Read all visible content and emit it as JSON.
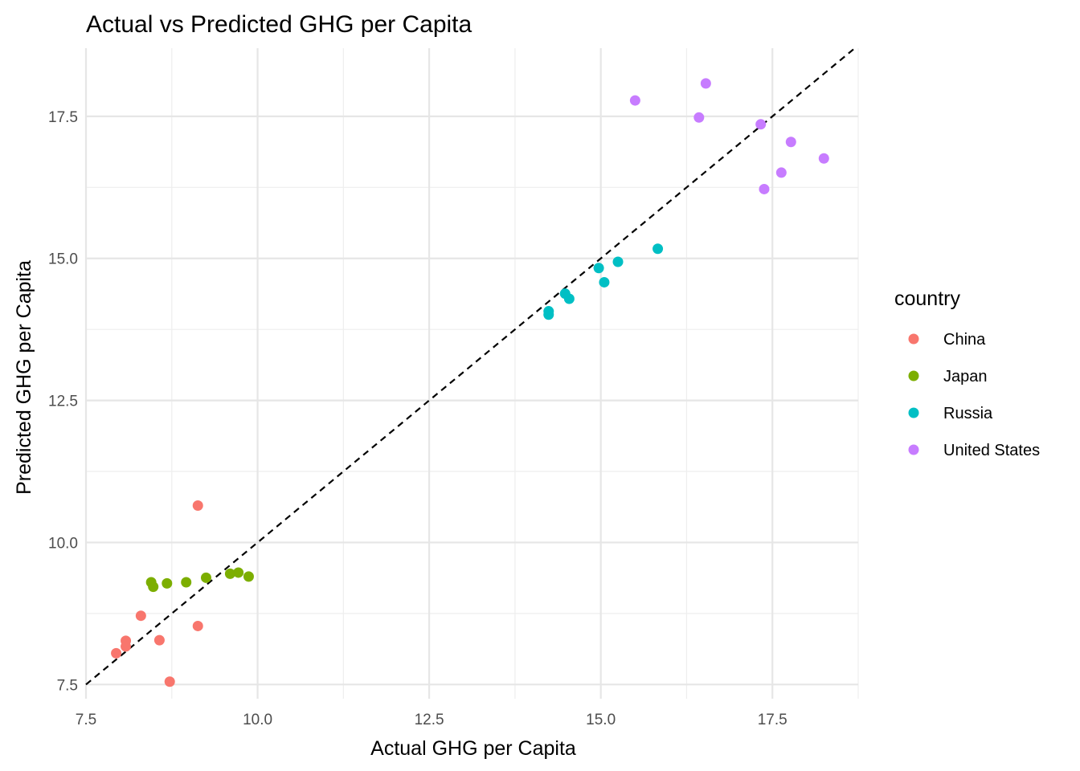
{
  "chart_data": {
    "type": "scatter",
    "title": "Actual vs Predicted GHG per Capita",
    "xlabel": "Actual GHG per Capita",
    "ylabel": "Predicted GHG per Capita",
    "xlim": [
      7.5,
      18.75
    ],
    "ylim": [
      7.25,
      18.7
    ],
    "x_ticks": [
      7.5,
      10.0,
      12.5,
      15.0,
      17.5
    ],
    "y_ticks": [
      7.5,
      10.0,
      12.5,
      15.0,
      17.5
    ],
    "x_tick_labels": [
      "7.5",
      "10.0",
      "12.5",
      "15.0",
      "17.5"
    ],
    "y_tick_labels": [
      "7.5",
      "10.0",
      "12.5",
      "15.0",
      "17.5"
    ],
    "grid": true,
    "reference_line": {
      "type": "identity",
      "style": "dashed",
      "color": "#000000"
    },
    "legend": {
      "title": "country",
      "position": "right"
    },
    "series": [
      {
        "name": "China",
        "color": "#F8766D",
        "points": [
          {
            "x": 7.94,
            "y": 8.05
          },
          {
            "x": 8.08,
            "y": 8.27
          },
          {
            "x": 8.08,
            "y": 8.17
          },
          {
            "x": 8.3,
            "y": 8.71
          },
          {
            "x": 8.57,
            "y": 8.28
          },
          {
            "x": 8.72,
            "y": 7.55
          },
          {
            "x": 9.13,
            "y": 8.53
          },
          {
            "x": 9.13,
            "y": 10.65
          }
        ]
      },
      {
        "name": "Japan",
        "color": "#7CAE00",
        "points": [
          {
            "x": 8.45,
            "y": 9.3
          },
          {
            "x": 8.48,
            "y": 9.22
          },
          {
            "x": 8.68,
            "y": 9.28
          },
          {
            "x": 8.96,
            "y": 9.3
          },
          {
            "x": 9.25,
            "y": 9.38
          },
          {
            "x": 9.6,
            "y": 9.45
          },
          {
            "x": 9.72,
            "y": 9.47
          },
          {
            "x": 9.87,
            "y": 9.4
          }
        ]
      },
      {
        "name": "Russia",
        "color": "#00BFC4",
        "points": [
          {
            "x": 14.24,
            "y": 14.07
          },
          {
            "x": 14.24,
            "y": 14.01
          },
          {
            "x": 14.48,
            "y": 14.38
          },
          {
            "x": 14.54,
            "y": 14.29
          },
          {
            "x": 14.97,
            "y": 14.83
          },
          {
            "x": 15.05,
            "y": 14.58
          },
          {
            "x": 15.25,
            "y": 14.94
          },
          {
            "x": 15.83,
            "y": 15.17
          }
        ]
      },
      {
        "name": "United States",
        "color": "#C77CFF",
        "points": [
          {
            "x": 15.5,
            "y": 17.78
          },
          {
            "x": 16.43,
            "y": 17.48
          },
          {
            "x": 16.53,
            "y": 18.08
          },
          {
            "x": 17.33,
            "y": 17.36
          },
          {
            "x": 17.38,
            "y": 16.22
          },
          {
            "x": 17.63,
            "y": 16.51
          },
          {
            "x": 17.77,
            "y": 17.05
          },
          {
            "x": 18.25,
            "y": 16.76
          }
        ]
      }
    ]
  }
}
